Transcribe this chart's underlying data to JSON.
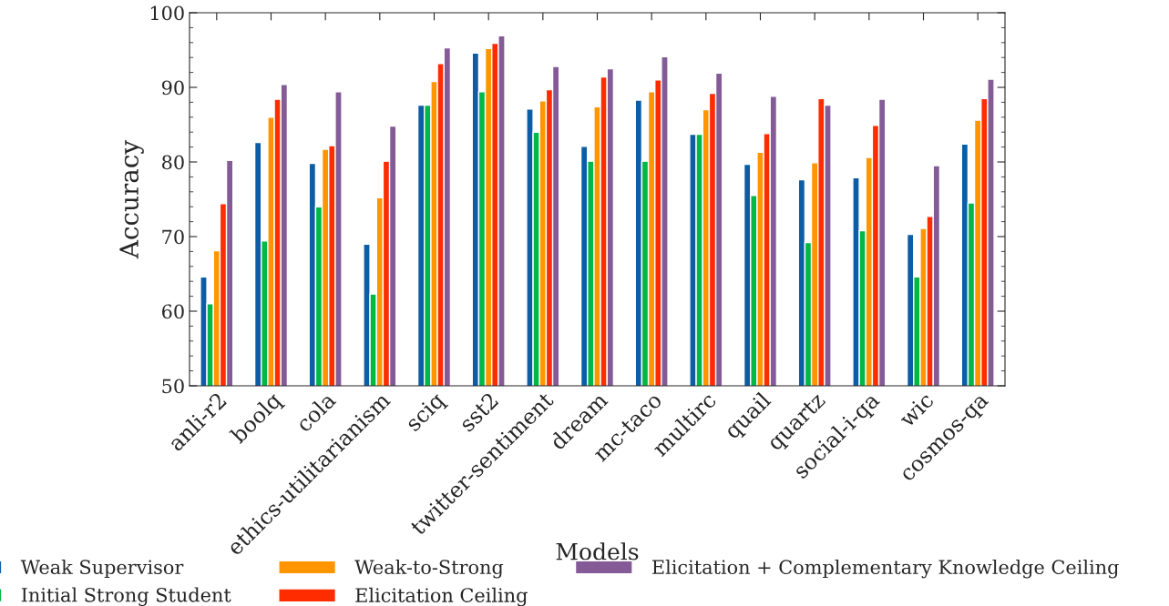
{
  "chart_data": {
    "type": "bar",
    "xlabel": "Models",
    "ylabel": "Accuracy",
    "categories": [
      "anli-r2",
      "boolq",
      "cola",
      "ethics-utilitarianism",
      "sciq",
      "sst2",
      "twitter-sentiment",
      "dream",
      "mc-taco",
      "multirc",
      "quail",
      "quartz",
      "social-i-qa",
      "wic",
      "cosmos-qa"
    ],
    "series": [
      {
        "name": "Weak Supervisor",
        "color": "#0c5da5",
        "values": [
          64.6,
          82.6,
          79.8,
          69.0,
          87.6,
          94.6,
          87.1,
          82.1,
          88.3,
          83.7,
          79.7,
          77.6,
          77.9,
          70.3,
          82.4
        ]
      },
      {
        "name": "Initial Strong Student",
        "color": "#00b945",
        "values": [
          61.0,
          69.4,
          74.0,
          62.3,
          87.6,
          89.4,
          84.0,
          80.1,
          80.1,
          83.7,
          75.5,
          69.2,
          70.8,
          64.6,
          74.5
        ]
      },
      {
        "name": "Weak-to-Strong",
        "color": "#ff9500",
        "values": [
          68.1,
          86.0,
          81.7,
          75.2,
          90.8,
          95.2,
          88.2,
          87.4,
          89.4,
          87.0,
          81.3,
          79.9,
          80.6,
          71.1,
          85.6
        ]
      },
      {
        "name": "Elicitation Ceiling",
        "color": "#ff2c00",
        "values": [
          74.4,
          88.4,
          82.2,
          80.1,
          93.2,
          95.9,
          89.7,
          91.4,
          91.0,
          89.2,
          83.8,
          88.5,
          84.9,
          72.7,
          88.5
        ]
      },
      {
        "name": "Elicitation + Complementary Knowledge Ceiling",
        "color": "#845b97",
        "values": [
          80.2,
          90.4,
          89.4,
          84.8,
          95.3,
          96.9,
          92.8,
          92.5,
          94.1,
          91.9,
          88.8,
          87.6,
          88.4,
          79.5,
          91.1
        ]
      }
    ],
    "ylim": [
      50,
      100
    ],
    "yticks": [
      50,
      60,
      70,
      80,
      90,
      100
    ],
    "grid": false,
    "legend": "bottom"
  }
}
